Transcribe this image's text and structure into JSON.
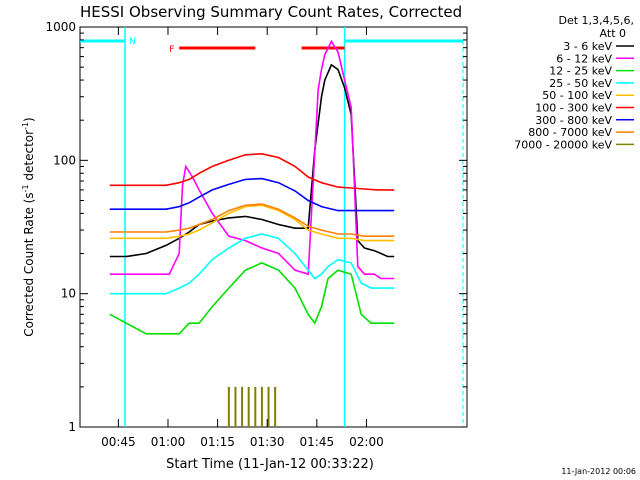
{
  "chart_data": {
    "type": "line",
    "title": "HESSI Observing Summary Count Rates, Corrected",
    "xlabel": "Start Time (11-Jan-12 00:33:22)",
    "ylabel": "Corrected Count Rate (s⁻¹ detector⁻¹)",
    "ylabel_parts": [
      "Corrected Count Rate (s",
      "-1",
      " detector",
      "-1",
      ")"
    ],
    "x_unit": "minutes after 00:33:22",
    "xlim": [
      0,
      117
    ],
    "ylim": [
      1,
      1000
    ],
    "yscale": "log",
    "x_ticks": [
      {
        "label": "00:45",
        "x": 11.6
      },
      {
        "label": "01:00",
        "x": 26.6
      },
      {
        "label": "01:15",
        "x": 41.6
      },
      {
        "label": "01:30",
        "x": 56.6
      },
      {
        "label": "01:45",
        "x": 71.6
      },
      {
        "label": "02:00",
        "x": 86.6
      }
    ],
    "y_ticks": [
      {
        "label": "1",
        "y": 1
      },
      {
        "label": "10",
        "y": 10
      },
      {
        "label": "100",
        "y": 100
      },
      {
        "label": "1000",
        "y": 1000
      }
    ],
    "legend_header": [
      "Det 1,3,4,5,6,",
      "Att 0"
    ],
    "legend_position": "right, outside plot",
    "series": [
      {
        "name": "3 - 6 keV",
        "color": "#000000",
        "x": [
          9,
          14,
          20,
          26,
          30,
          33,
          36,
          40,
          45,
          50,
          55,
          60,
          65,
          69,
          71,
          73,
          74,
          76,
          78,
          80,
          82,
          84,
          86,
          89,
          91,
          93,
          95
        ],
        "y": [
          19,
          19,
          20,
          23,
          26,
          29,
          33,
          35,
          37,
          38,
          36,
          33,
          31,
          31,
          120,
          300,
          400,
          520,
          480,
          350,
          220,
          25,
          22,
          21,
          20,
          19,
          19
        ]
      },
      {
        "name": "6 - 12 keV",
        "color": "#ff00ff",
        "x": [
          9,
          14,
          20,
          24,
          27,
          30,
          31,
          32,
          34,
          36,
          40,
          45,
          50,
          55,
          60,
          65,
          69,
          72,
          73,
          74,
          76,
          78,
          80,
          82,
          84,
          86,
          89,
          91,
          93,
          95
        ],
        "y": [
          14,
          14,
          14,
          14,
          14,
          20,
          65,
          90,
          75,
          60,
          40,
          27,
          25,
          22,
          20,
          15,
          14,
          340,
          480,
          620,
          780,
          650,
          400,
          250,
          16,
          14,
          14,
          13,
          13,
          13
        ],
        "x_hint": "dip then flare near 01:45"
      },
      {
        "name": "12 - 25 keV",
        "color": "#00e000",
        "x": [
          9,
          14,
          20,
          26,
          30,
          33,
          36,
          40,
          45,
          50,
          55,
          60,
          65,
          69,
          71,
          73,
          75,
          78,
          82,
          85,
          88,
          91,
          95
        ],
        "y": [
          7,
          6,
          5,
          5,
          5,
          6,
          6,
          8,
          11,
          15,
          17,
          15,
          11,
          7,
          6,
          8,
          13,
          15,
          14,
          7,
          6,
          6,
          6
        ]
      },
      {
        "name": "25 - 50 keV",
        "color": "#00ffff",
        "x": [
          9,
          14,
          20,
          26,
          30,
          33,
          36,
          40,
          45,
          50,
          55,
          60,
          65,
          69,
          71,
          73,
          75,
          78,
          82,
          85,
          88,
          91,
          95
        ],
        "y": [
          10,
          10,
          10,
          10,
          11,
          12,
          14,
          18,
          22,
          26,
          28,
          26,
          20,
          15,
          13,
          14,
          16,
          18,
          17,
          12,
          11,
          11,
          11
        ]
      },
      {
        "name": "50 - 100 keV",
        "color": "#ffbf00",
        "x": [
          9,
          14,
          20,
          26,
          30,
          33,
          36,
          40,
          45,
          50,
          55,
          60,
          65,
          69,
          73,
          78,
          82,
          86,
          90,
          95
        ],
        "y": [
          26,
          26,
          26,
          26,
          27,
          28,
          30,
          34,
          40,
          45,
          46,
          42,
          36,
          30,
          28,
          26,
          26,
          25,
          25,
          25
        ]
      },
      {
        "name": "100 - 300 keV",
        "color": "#ff0000",
        "x": [
          9,
          14,
          20,
          26,
          30,
          33,
          36,
          40,
          45,
          50,
          55,
          60,
          65,
          69,
          73,
          78,
          82,
          86,
          90,
          95
        ],
        "y": [
          65,
          65,
          65,
          65,
          68,
          72,
          80,
          90,
          100,
          110,
          112,
          105,
          90,
          75,
          68,
          63,
          62,
          61,
          60,
          60
        ]
      },
      {
        "name": "300 - 800 keV",
        "color": "#0000ff",
        "x": [
          9,
          14,
          20,
          26,
          30,
          33,
          36,
          40,
          45,
          50,
          55,
          60,
          65,
          69,
          73,
          78,
          82,
          86,
          90,
          95
        ],
        "y": [
          43,
          43,
          43,
          43,
          45,
          48,
          53,
          60,
          66,
          72,
          73,
          68,
          59,
          50,
          45,
          42,
          42,
          42,
          42,
          42
        ]
      },
      {
        "name": "800 - 7000 keV",
        "color": "#ff8000",
        "x": [
          9,
          14,
          20,
          26,
          30,
          33,
          36,
          40,
          45,
          50,
          55,
          60,
          65,
          69,
          73,
          78,
          82,
          86,
          90,
          95
        ],
        "y": [
          29,
          29,
          29,
          29,
          30,
          31,
          33,
          36,
          42,
          46,
          47,
          43,
          37,
          32,
          30,
          28,
          28,
          27,
          27,
          27
        ]
      },
      {
        "name": "7000 - 20000 keV",
        "color": "#808000",
        "x": [
          45,
          47,
          49,
          51,
          53,
          55,
          57,
          59
        ],
        "y": [
          2,
          2,
          2,
          2,
          2,
          2,
          2,
          2
        ],
        "bars_from": 1
      }
    ],
    "night_intervals": [
      {
        "label": "N",
        "start": -1,
        "end": 13.6,
        "level": 800
      },
      {
        "label": "",
        "start": 80,
        "end": 117,
        "level": 800
      }
    ],
    "saa_boundaries": [
      13.6,
      80
    ],
    "flare_intervals": [
      {
        "label": "F",
        "start": 30,
        "end": 53,
        "level": 700
      },
      {
        "label": "",
        "start": 67,
        "end": 80,
        "level": 700
      }
    ],
    "timestamp": "11-Jan-2012 00:06"
  }
}
